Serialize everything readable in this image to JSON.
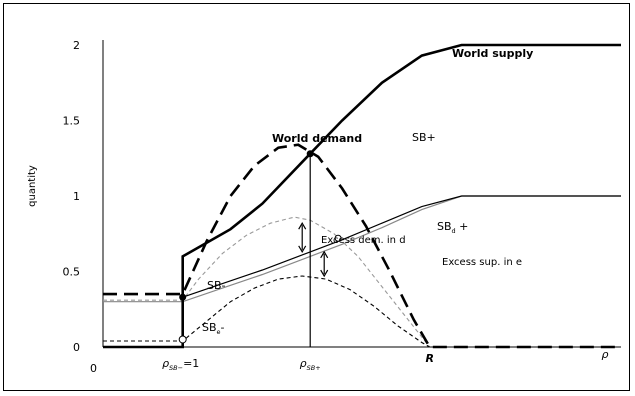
{
  "chart_data": {
    "type": "line",
    "ylabel": "quantity",
    "y_ticks": [
      "2",
      "1.5",
      "1",
      "0.5",
      "0"
    ],
    "x_origin_label": "0",
    "x_tick_1": {
      "main": "ρ",
      "sub": "SB−",
      "suffix": "=1"
    },
    "x_tick_2": {
      "main": "ρ",
      "sub": "SB+"
    },
    "x_tick_R": "R",
    "x_axis_symbol": "ρ",
    "ylim": [
      0,
      2
    ],
    "xlim": [
      0,
      6.5
    ],
    "key_points": {
      "x1": 1.0,
      "x2": 2.6,
      "R": 4.1,
      "supply_kink": 4.5
    },
    "annotations": {
      "world_supply": "World supply",
      "world_demand": "World demand",
      "sb_plus": "SB+",
      "sb_minus": "SB-",
      "sbd_main": "SB",
      "sbd_sub": "d",
      "sbd_suffix": " +",
      "sbe_main": "SB",
      "sbe_sub": "e",
      "sbe_suffix": "-",
      "excess_dem": "Excess dem. in d",
      "excess_sup": "Excess sup. in e"
    },
    "series": [
      {
        "name": "World supply",
        "style": "thick-solid",
        "color": "#000000",
        "points": [
          [
            0,
            0
          ],
          [
            1,
            0
          ],
          [
            1,
            0.6
          ],
          [
            1.6,
            0.78
          ],
          [
            2,
            0.95
          ],
          [
            2.6,
            1.28
          ],
          [
            3,
            1.5
          ],
          [
            3.5,
            1.75
          ],
          [
            4,
            1.93
          ],
          [
            4.5,
            2
          ],
          [
            6.5,
            2
          ]
        ]
      },
      {
        "name": "World demand",
        "style": "thick-dashed",
        "color": "#000000",
        "points": [
          [
            0,
            0.35
          ],
          [
            1,
            0.35
          ],
          [
            1.3,
            0.7
          ],
          [
            1.6,
            1.0
          ],
          [
            1.9,
            1.2
          ],
          [
            2.2,
            1.32
          ],
          [
            2.45,
            1.34
          ],
          [
            2.7,
            1.26
          ],
          [
            3.0,
            1.05
          ],
          [
            3.3,
            0.8
          ],
          [
            3.6,
            0.5
          ],
          [
            3.9,
            0.18
          ],
          [
            4.1,
            0
          ],
          [
            6.5,
            0
          ]
        ]
      },
      {
        "series_id": "supply_d",
        "style": "thin-solid",
        "color": "#000000",
        "points": [
          [
            1,
            0.33
          ],
          [
            1.5,
            0.42
          ],
          [
            2,
            0.51
          ],
          [
            2.6,
            0.63
          ],
          [
            3,
            0.71
          ],
          [
            3.5,
            0.82
          ],
          [
            4,
            0.93
          ],
          [
            4.5,
            1.0
          ],
          [
            6.5,
            1.0
          ]
        ]
      },
      {
        "series_id": "supply_e",
        "style": "thin-solid",
        "color": "#888888",
        "points": [
          [
            0,
            0.3
          ],
          [
            1,
            0.3
          ],
          [
            1.5,
            0.39
          ],
          [
            2,
            0.48
          ],
          [
            2.6,
            0.6
          ],
          [
            3,
            0.68
          ],
          [
            3.5,
            0.79
          ],
          [
            4,
            0.91
          ],
          [
            4.5,
            1.0
          ],
          [
            6.5,
            1.0
          ]
        ]
      },
      {
        "series_id": "demand_d",
        "style": "thin-dashed",
        "color": "#999999",
        "points": [
          [
            0,
            0.31
          ],
          [
            1,
            0.31
          ],
          [
            1.2,
            0.45
          ],
          [
            1.5,
            0.62
          ],
          [
            1.8,
            0.74
          ],
          [
            2.1,
            0.82
          ],
          [
            2.4,
            0.86
          ],
          [
            2.6,
            0.84
          ],
          [
            2.9,
            0.75
          ],
          [
            3.2,
            0.6
          ],
          [
            3.5,
            0.4
          ],
          [
            3.8,
            0.2
          ],
          [
            4.1,
            0
          ]
        ]
      },
      {
        "series_id": "demand_e",
        "style": "thin-dashed",
        "color": "#000000",
        "points": [
          [
            0,
            0.04
          ],
          [
            1,
            0.04
          ],
          [
            1.3,
            0.17
          ],
          [
            1.6,
            0.3
          ],
          [
            1.9,
            0.39
          ],
          [
            2.2,
            0.45
          ],
          [
            2.5,
            0.47
          ],
          [
            2.8,
            0.45
          ],
          [
            3.1,
            0.38
          ],
          [
            3.4,
            0.27
          ],
          [
            3.7,
            0.14
          ],
          [
            4.0,
            0.03
          ],
          [
            4.1,
            0
          ]
        ]
      }
    ],
    "markers": {
      "sb_plus": [
        2.6,
        1.28
      ],
      "sb_minus": [
        1,
        0.33
      ],
      "sbd": [
        2.95,
        0.72
      ],
      "sbe": [
        1,
        0.05
      ]
    },
    "arrows": {
      "excess_dem": {
        "x": 2.6,
        "y_from": 0.82,
        "y_to": 0.63
      },
      "excess_sup": {
        "x": 2.6,
        "y_from": 0.63,
        "y_to": 0.47
      }
    }
  }
}
